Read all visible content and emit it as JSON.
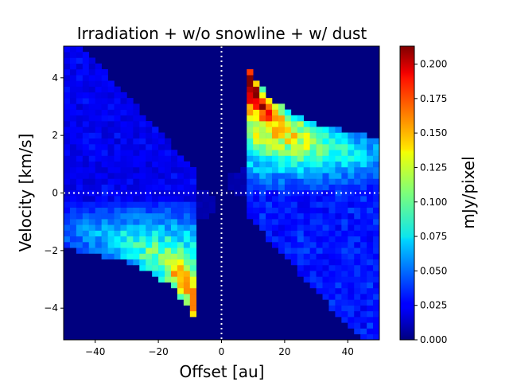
{
  "chart_data": {
    "type": "heatmap",
    "title": "Irradiation + w/o snowline + w/ dust",
    "xlabel": "Offset [au]",
    "ylabel": "Velocity [km/s]",
    "colorbar_label": "mJy/pixel",
    "colormap": "jet",
    "xlim": [
      -50,
      50
    ],
    "ylim": [
      -5.1,
      5.1
    ],
    "xticks": [
      -40,
      -20,
      0,
      20,
      40
    ],
    "yticks": [
      -4,
      -2,
      0,
      2,
      4
    ],
    "xtick_labels": [
      "−40",
      "−20",
      "0",
      "20",
      "40"
    ],
    "ytick_labels": [
      "−4",
      "−2",
      "0",
      "2",
      "4"
    ],
    "clim": [
      0.0,
      0.213
    ],
    "colorbar_ticks": [
      0.0,
      0.025,
      0.05,
      0.075,
      0.1,
      0.125,
      0.15,
      0.175,
      0.2
    ],
    "colorbar_tick_labels": [
      "0.000",
      "0.025",
      "0.050",
      "0.075",
      "0.100",
      "0.125",
      "0.150",
      "0.175",
      "0.200"
    ],
    "grid": false,
    "reference_lines": [
      {
        "orientation": "vertical",
        "value": 0,
        "style": "dotted",
        "color": "#ffffff"
      },
      {
        "orientation": "horizontal",
        "value": 0,
        "style": "dotted",
        "color": "#ffffff"
      }
    ],
    "pixel_size": {
      "dx_au": 2.0,
      "dv_kms": 0.2
    },
    "emission_lobes": [
      {
        "region": "positive offset / positive velocity",
        "offset_range": [
          8,
          50
        ],
        "velocity_range": [
          -1.2,
          4.5
        ],
        "peak_mJy_per_pixel": 0.213,
        "peak_at": [
          12,
          3.5
        ]
      },
      {
        "region": "negative offset / negative velocity",
        "offset_range": [
          -50,
          -8
        ],
        "velocity_range": [
          -4.5,
          1.2
        ],
        "peak_mJy_per_pixel": 0.16,
        "peak_at": [
          -12,
          -3.0
        ]
      }
    ]
  }
}
